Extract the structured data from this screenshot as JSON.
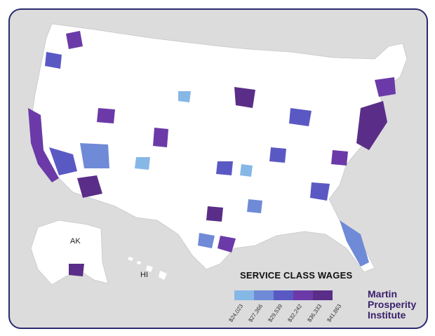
{
  "map": {
    "alaska_label": "AK",
    "hawaii_label": "HI",
    "legend": {
      "title": "SERVICE CLASS WAGES",
      "bins": [
        {
          "label": "$24,023",
          "color": "#86b8e6"
        },
        {
          "label": "$27,366",
          "color": "#6f8ad6"
        },
        {
          "label": "$29,539",
          "color": "#5a59c4"
        },
        {
          "label": "$32,242",
          "color": "#6b3aa8"
        },
        {
          "label": "$36,333",
          "color": "#5a2e88"
        },
        {
          "label": "$41,863",
          "color": ""
        }
      ]
    },
    "colors": {
      "background": "#dcdcdc",
      "land": "#ffffff",
      "border": "#2a2a6e"
    }
  },
  "branding": {
    "line1": "Martin",
    "line2": "Prosperity",
    "line3": "Institute"
  }
}
